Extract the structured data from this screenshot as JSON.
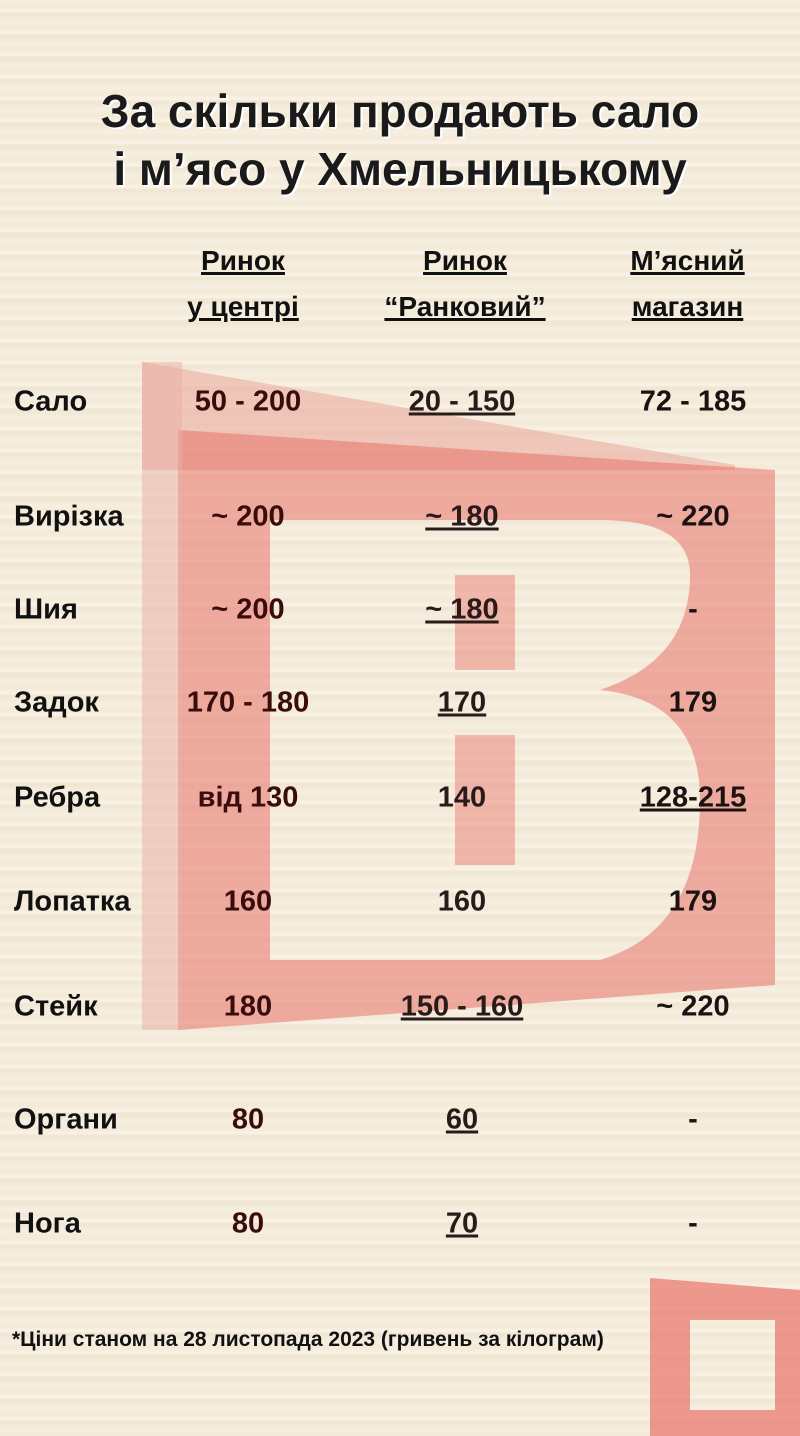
{
  "title_lines": [
    "За скільки продають сало",
    "і м’ясо у Хмельницькому"
  ],
  "columns": [
    {
      "line1": "Ринок",
      "line2": "у центрі"
    },
    {
      "line1": "Ринок",
      "line2": "“Ранковий”"
    },
    {
      "line1": "М’ясний",
      "line2": "магазин"
    }
  ],
  "rows": [
    {
      "label": "Сало",
      "values": [
        "50 - 200",
        "20 - 150",
        "72 - 185"
      ]
    },
    {
      "label": "Вирізка",
      "values": [
        "~ 200",
        "~ 180",
        "~ 220"
      ]
    },
    {
      "label": "Шия",
      "values": [
        "~ 200",
        "~ 180",
        "-"
      ]
    },
    {
      "label": "Задок",
      "values": [
        "170 - 180",
        "170",
        "179"
      ]
    },
    {
      "label": "Ребра",
      "values": [
        "від 130",
        "140",
        "128-215"
      ]
    },
    {
      "label": "Лопатка",
      "values": [
        "160",
        "160",
        "179"
      ]
    },
    {
      "label": "Стейк",
      "values": [
        "180",
        "150 - 160",
        "~ 220"
      ]
    },
    {
      "label": "Органи",
      "values": [
        "80",
        "60",
        "-"
      ]
    },
    {
      "label": "Нога",
      "values": [
        "80",
        "70",
        "-"
      ]
    }
  ],
  "footnote": "*Ціни станом на 28 листопада 2023 (гривень за кілограм)",
  "watermark": {
    "logo_letter": "B",
    "color": "#e8736a"
  }
}
